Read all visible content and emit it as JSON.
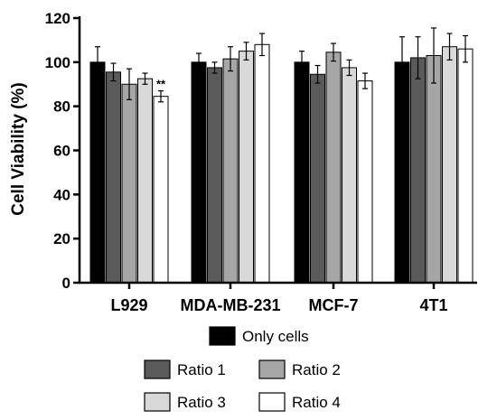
{
  "chart_data": {
    "type": "bar",
    "title": "",
    "xlabel": "",
    "ylabel": "Cell Viability (%)",
    "ylim": [
      0,
      120
    ],
    "yticks": [
      0,
      20,
      40,
      60,
      80,
      100,
      120
    ],
    "grid": false,
    "legend_position": "bottom",
    "categories": [
      "L929",
      "MDA-MB-231",
      "MCF-7",
      "4T1"
    ],
    "series": [
      {
        "name": "Only cells",
        "color": "#000000",
        "values": [
          100,
          100,
          100,
          100
        ],
        "errors": [
          7,
          4,
          5,
          11.5
        ]
      },
      {
        "name": "Ratio 1",
        "color": "#5a5a5a",
        "values": [
          95.5,
          97.5,
          94.5,
          102
        ],
        "errors": [
          4,
          2.5,
          4,
          9.5
        ]
      },
      {
        "name": "Ratio 2",
        "color": "#a6a6a6",
        "values": [
          90,
          101.5,
          104.5,
          103
        ],
        "errors": [
          7,
          5.5,
          4,
          12.5
        ]
      },
      {
        "name": "Ratio 3",
        "color": "#d9d9d9",
        "values": [
          92.5,
          105,
          97.5,
          107
        ],
        "errors": [
          2.5,
          4,
          3.5,
          6
        ]
      },
      {
        "name": "Ratio 4",
        "color": "#ffffff",
        "values": [
          84.5,
          108,
          91.5,
          106
        ],
        "errors": [
          2.5,
          5,
          3.5,
          6
        ]
      }
    ],
    "annotations": [
      {
        "text": "**",
        "category": "L929",
        "series": "Ratio 4"
      }
    ]
  }
}
